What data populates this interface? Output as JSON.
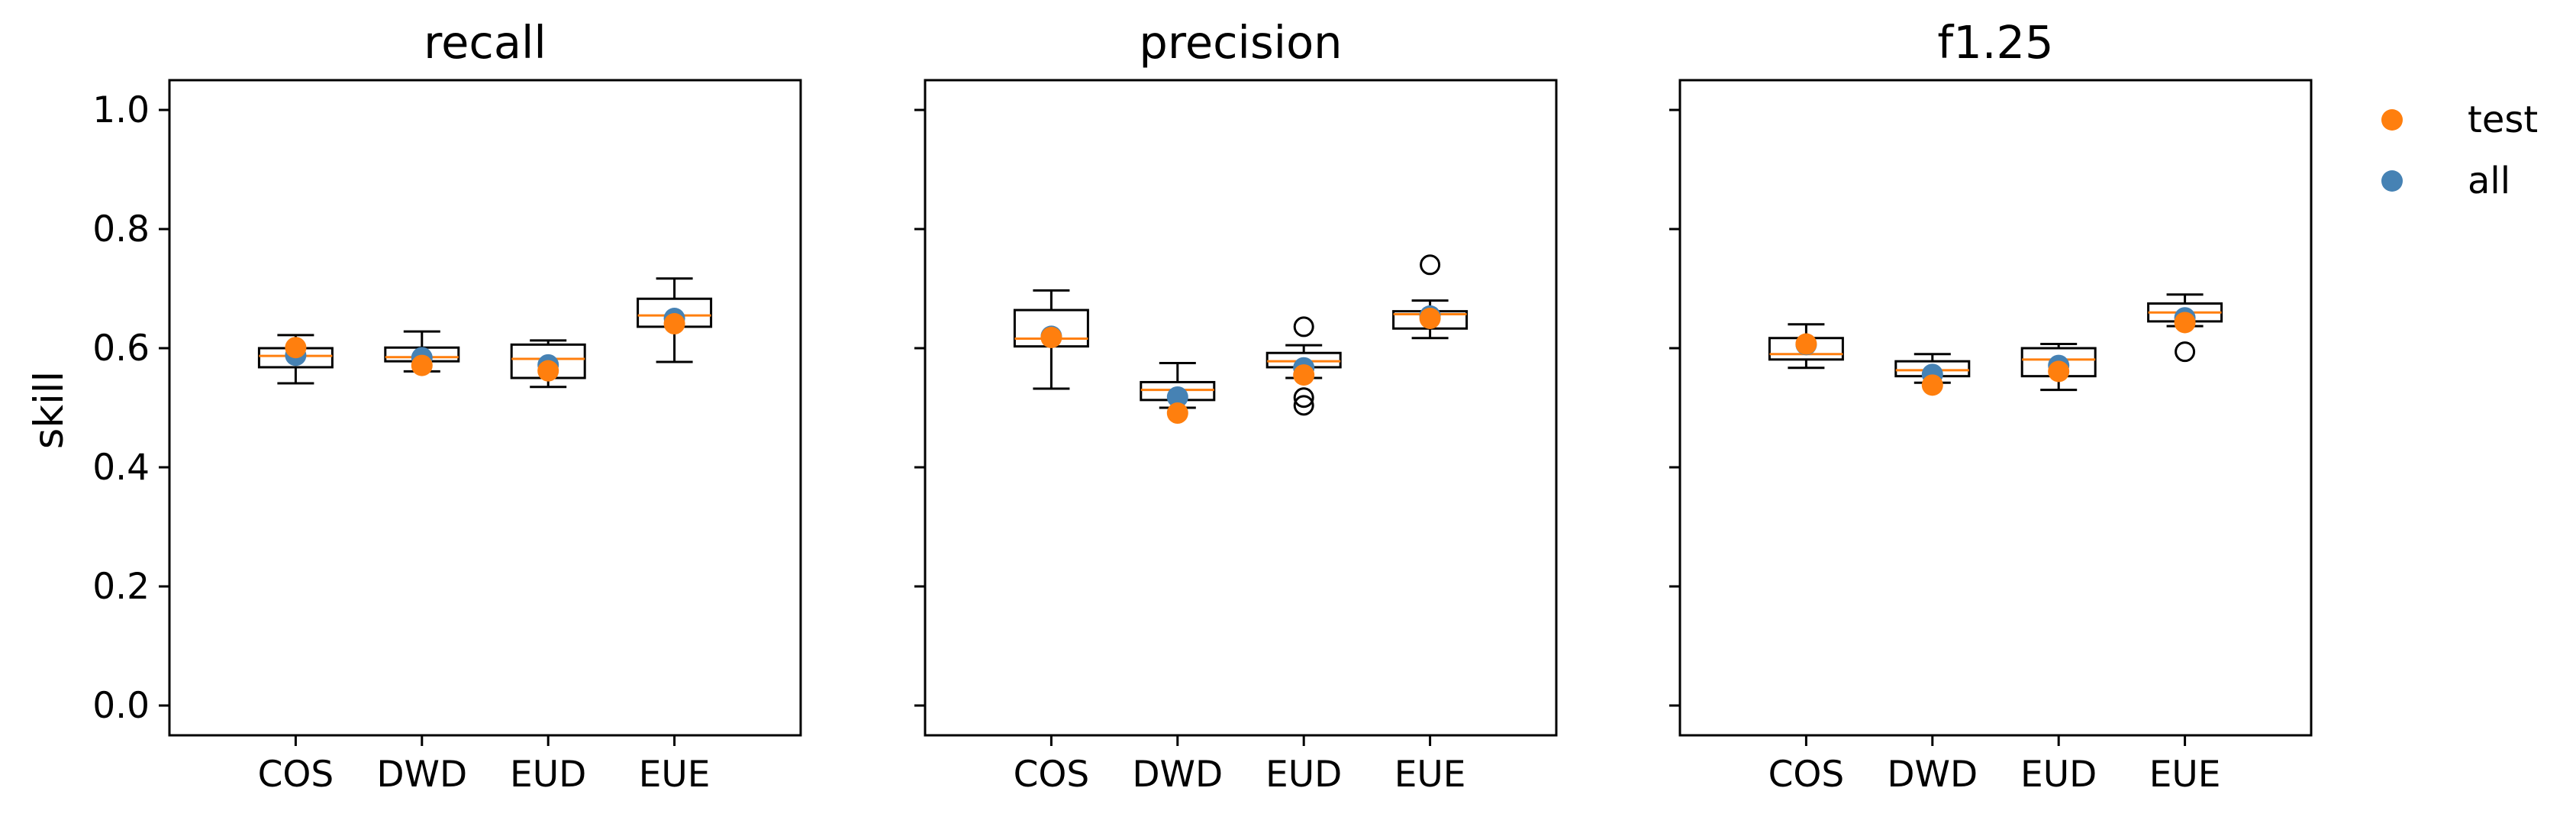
{
  "chart_data": {
    "type": "box",
    "ylabel": "skill",
    "ylim": [
      -0.05,
      1.05
    ],
    "yticks": [
      0.0,
      0.2,
      0.4,
      0.6,
      0.8,
      1.0
    ],
    "ytick_labels": [
      "0.0",
      "0.2",
      "0.4",
      "0.6",
      "0.8",
      "1.0"
    ],
    "categories": [
      "COS",
      "DWD",
      "EUD",
      "EUE"
    ],
    "legend": {
      "position": "outside-right",
      "entries": [
        {
          "name": "test",
          "color": "#ff7f0e"
        },
        {
          "name": "all",
          "color": "#4682b4"
        }
      ]
    },
    "panels": [
      {
        "title": "recall",
        "boxes": [
          {
            "category": "COS",
            "whislo": 0.541,
            "q1": 0.568,
            "median": 0.587,
            "q3": 0.6,
            "whishi": 0.622,
            "fliers": [],
            "all": 0.588,
            "test": 0.601
          },
          {
            "category": "DWD",
            "whislo": 0.561,
            "q1": 0.578,
            "median": 0.585,
            "q3": 0.601,
            "whishi": 0.628,
            "fliers": [],
            "all": 0.584,
            "test": 0.571
          },
          {
            "category": "EUD",
            "whislo": 0.535,
            "q1": 0.55,
            "median": 0.582,
            "q3": 0.606,
            "whishi": 0.613,
            "fliers": [],
            "all": 0.572,
            "test": 0.562
          },
          {
            "category": "EUE",
            "whislo": 0.577,
            "q1": 0.636,
            "median": 0.655,
            "q3": 0.683,
            "whishi": 0.717,
            "fliers": [],
            "all": 0.65,
            "test": 0.641
          }
        ]
      },
      {
        "title": "precision",
        "boxes": [
          {
            "category": "COS",
            "whislo": 0.532,
            "q1": 0.603,
            "median": 0.616,
            "q3": 0.664,
            "whishi": 0.697,
            "fliers": [],
            "all": 0.62,
            "test": 0.618
          },
          {
            "category": "DWD",
            "whislo": 0.5,
            "q1": 0.513,
            "median": 0.53,
            "q3": 0.543,
            "whishi": 0.575,
            "fliers": [],
            "all": 0.518,
            "test": 0.491
          },
          {
            "category": "EUD",
            "whislo": 0.55,
            "q1": 0.568,
            "median": 0.578,
            "q3": 0.592,
            "whishi": 0.605,
            "fliers": [
              0.636,
              0.517,
              0.504
            ],
            "all": 0.567,
            "test": 0.555
          },
          {
            "category": "EUE",
            "whislo": 0.617,
            "q1": 0.633,
            "median": 0.657,
            "q3": 0.662,
            "whishi": 0.68,
            "fliers": [
              0.74
            ],
            "all": 0.654,
            "test": 0.65
          }
        ]
      },
      {
        "title": "f1.25",
        "boxes": [
          {
            "category": "COS",
            "whislo": 0.567,
            "q1": 0.581,
            "median": 0.59,
            "q3": 0.617,
            "whishi": 0.64,
            "fliers": [],
            "all": 0.606,
            "test": 0.607
          },
          {
            "category": "DWD",
            "whislo": 0.542,
            "q1": 0.553,
            "median": 0.563,
            "q3": 0.578,
            "whishi": 0.59,
            "fliers": [],
            "all": 0.556,
            "test": 0.538
          },
          {
            "category": "EUD",
            "whislo": 0.53,
            "q1": 0.553,
            "median": 0.581,
            "q3": 0.6,
            "whishi": 0.607,
            "fliers": [],
            "all": 0.571,
            "test": 0.561
          },
          {
            "category": "EUE",
            "whislo": 0.637,
            "q1": 0.645,
            "median": 0.66,
            "q3": 0.675,
            "whishi": 0.69,
            "fliers": [
              0.594
            ],
            "all": 0.651,
            "test": 0.643
          }
        ]
      }
    ]
  }
}
